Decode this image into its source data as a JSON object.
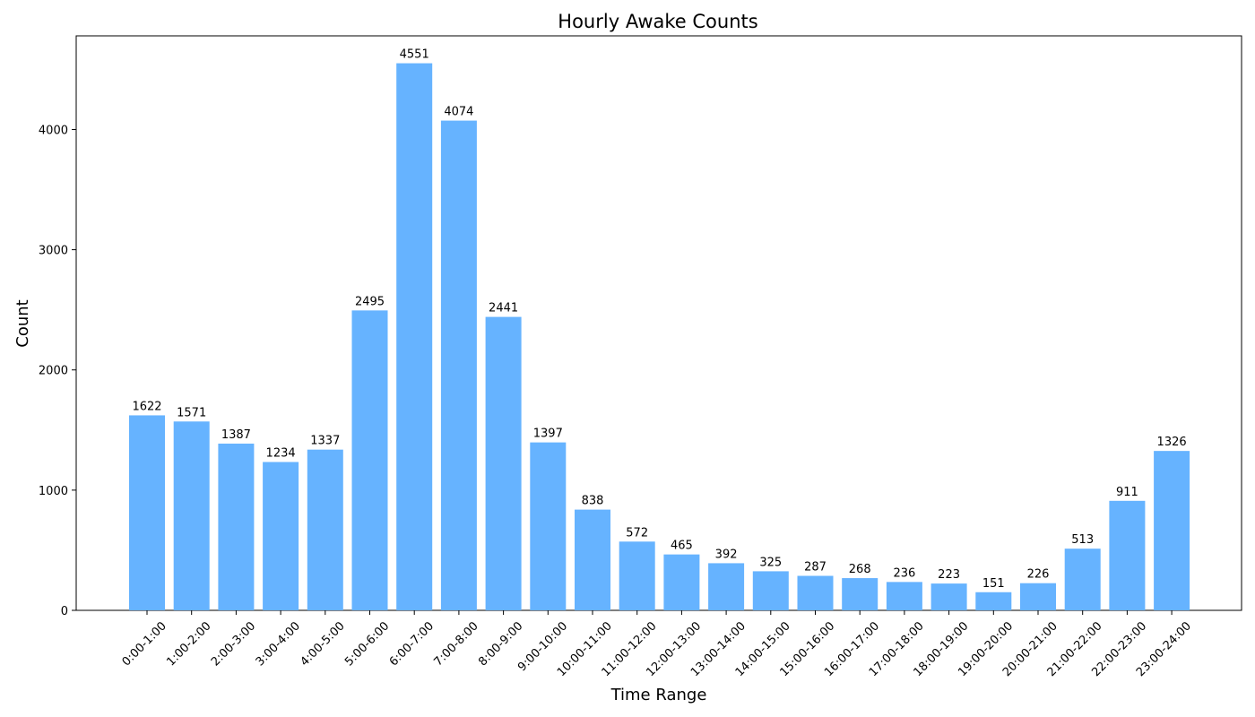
{
  "chart_data": {
    "type": "bar",
    "title": "Hourly Awake Counts",
    "xlabel": "Time Range",
    "ylabel": "Count",
    "categories": [
      "0:00-1:00",
      "1:00-2:00",
      "2:00-3:00",
      "3:00-4:00",
      "4:00-5:00",
      "5:00-6:00",
      "6:00-7:00",
      "7:00-8:00",
      "8:00-9:00",
      "9:00-10:00",
      "10:00-11:00",
      "11:00-12:00",
      "12:00-13:00",
      "13:00-14:00",
      "14:00-15:00",
      "15:00-16:00",
      "16:00-17:00",
      "17:00-18:00",
      "18:00-19:00",
      "19:00-20:00",
      "20:00-21:00",
      "21:00-22:00",
      "22:00-23:00",
      "23:00-24:00"
    ],
    "values": [
      1622,
      1571,
      1387,
      1234,
      1337,
      2495,
      4551,
      4074,
      2441,
      1397,
      838,
      572,
      465,
      392,
      325,
      287,
      268,
      236,
      223,
      151,
      226,
      513,
      911,
      1326
    ],
    "ylim": [
      0,
      4779
    ],
    "yticks": [
      0,
      1000,
      2000,
      3000,
      4000
    ],
    "grid": false,
    "bar_color": "#66b3ff"
  }
}
